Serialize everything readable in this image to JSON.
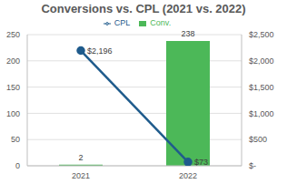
{
  "chart_data": {
    "type": "bar",
    "title": "Conversions vs. CPL (2021 vs. 2022)",
    "categories": [
      "2021",
      "2022"
    ],
    "series": [
      {
        "name": "Conv.",
        "type": "bar",
        "color": "#4cb858",
        "values": [
          2,
          238
        ]
      },
      {
        "name": "CPL",
        "type": "line",
        "axis": "y2",
        "color": "#1f5b8c",
        "marker": "circle",
        "values": [
          2196,
          73
        ],
        "value_labels": [
          "$2,196",
          "$73"
        ]
      }
    ],
    "ylim": [
      0,
      250
    ],
    "yticks": [
      0,
      50,
      100,
      150,
      200,
      250
    ],
    "y2lim": [
      0,
      2500
    ],
    "y2ticks": [
      {
        "value": 0,
        "label": "$-"
      },
      {
        "value": 500,
        "label": "$500"
      },
      {
        "value": 1000,
        "label": "$1,000"
      },
      {
        "value": 1500,
        "label": "$1,500"
      },
      {
        "value": 2000,
        "label": "$2,000"
      },
      {
        "value": 2500,
        "label": "$2,500"
      }
    ],
    "grid": true,
    "legend": "top",
    "data_labels": true
  }
}
